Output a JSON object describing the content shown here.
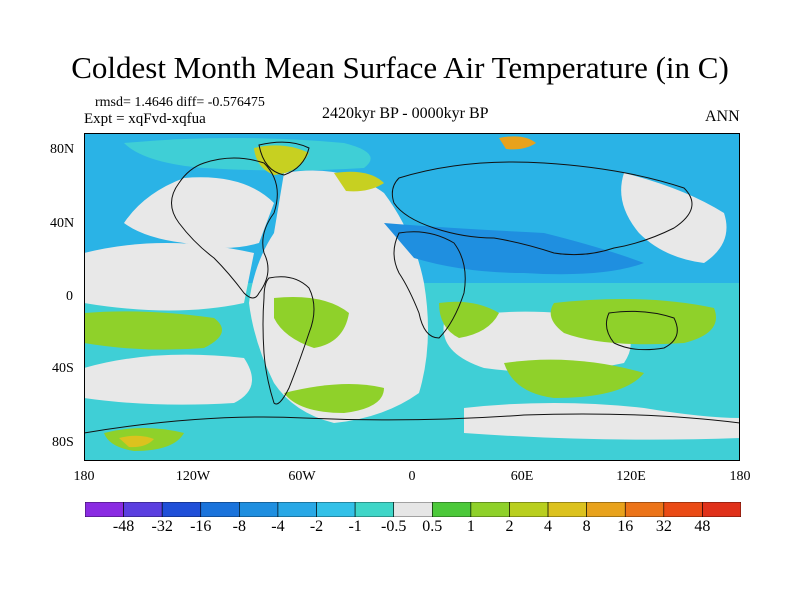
{
  "title": "Coldest Month Mean Surface Air Temperature (in C)",
  "stats": "rmsd= 1.4646 diff= -0.576475",
  "experiment": "Expt = xqFvd-xqfua",
  "period": "2420kyr BP - 0000kyr BP",
  "season": "ANN",
  "lat_labels": [
    "80N",
    "40N",
    "0",
    "40S",
    "80S"
  ],
  "lon_labels": [
    "180",
    "120W",
    "60W",
    "0",
    "60E",
    "120E",
    "180"
  ],
  "colorbar": {
    "labels": [
      "-48",
      "-32",
      "-16",
      "-8",
      "-4",
      "-2",
      "-1",
      "-0.5",
      "0.5",
      "1",
      "2",
      "4",
      "8",
      "16",
      "32",
      "48"
    ],
    "colors": [
      "#8a2be2",
      "#5b3fe0",
      "#1f4fd8",
      "#1a73db",
      "#1f8fe0",
      "#29a8e6",
      "#33c1e8",
      "#3fd6c8",
      "#e6e6e6",
      "#4cc93a",
      "#8fd12a",
      "#b9cf1e",
      "#dcc21e",
      "#e8a21c",
      "#ec7419",
      "#ea4b15",
      "#e0311a"
    ]
  },
  "field_colors": {
    "ocean_neutral": "#e8e8e8",
    "cool_light": "#3fcfd6",
    "cool": "#2ab3e6",
    "cool_deep": "#1f8fe0",
    "warm_light": "#8fd12a",
    "warm": "#c7d021",
    "warm_strong": "#e8a21c",
    "coast": "#111111"
  }
}
